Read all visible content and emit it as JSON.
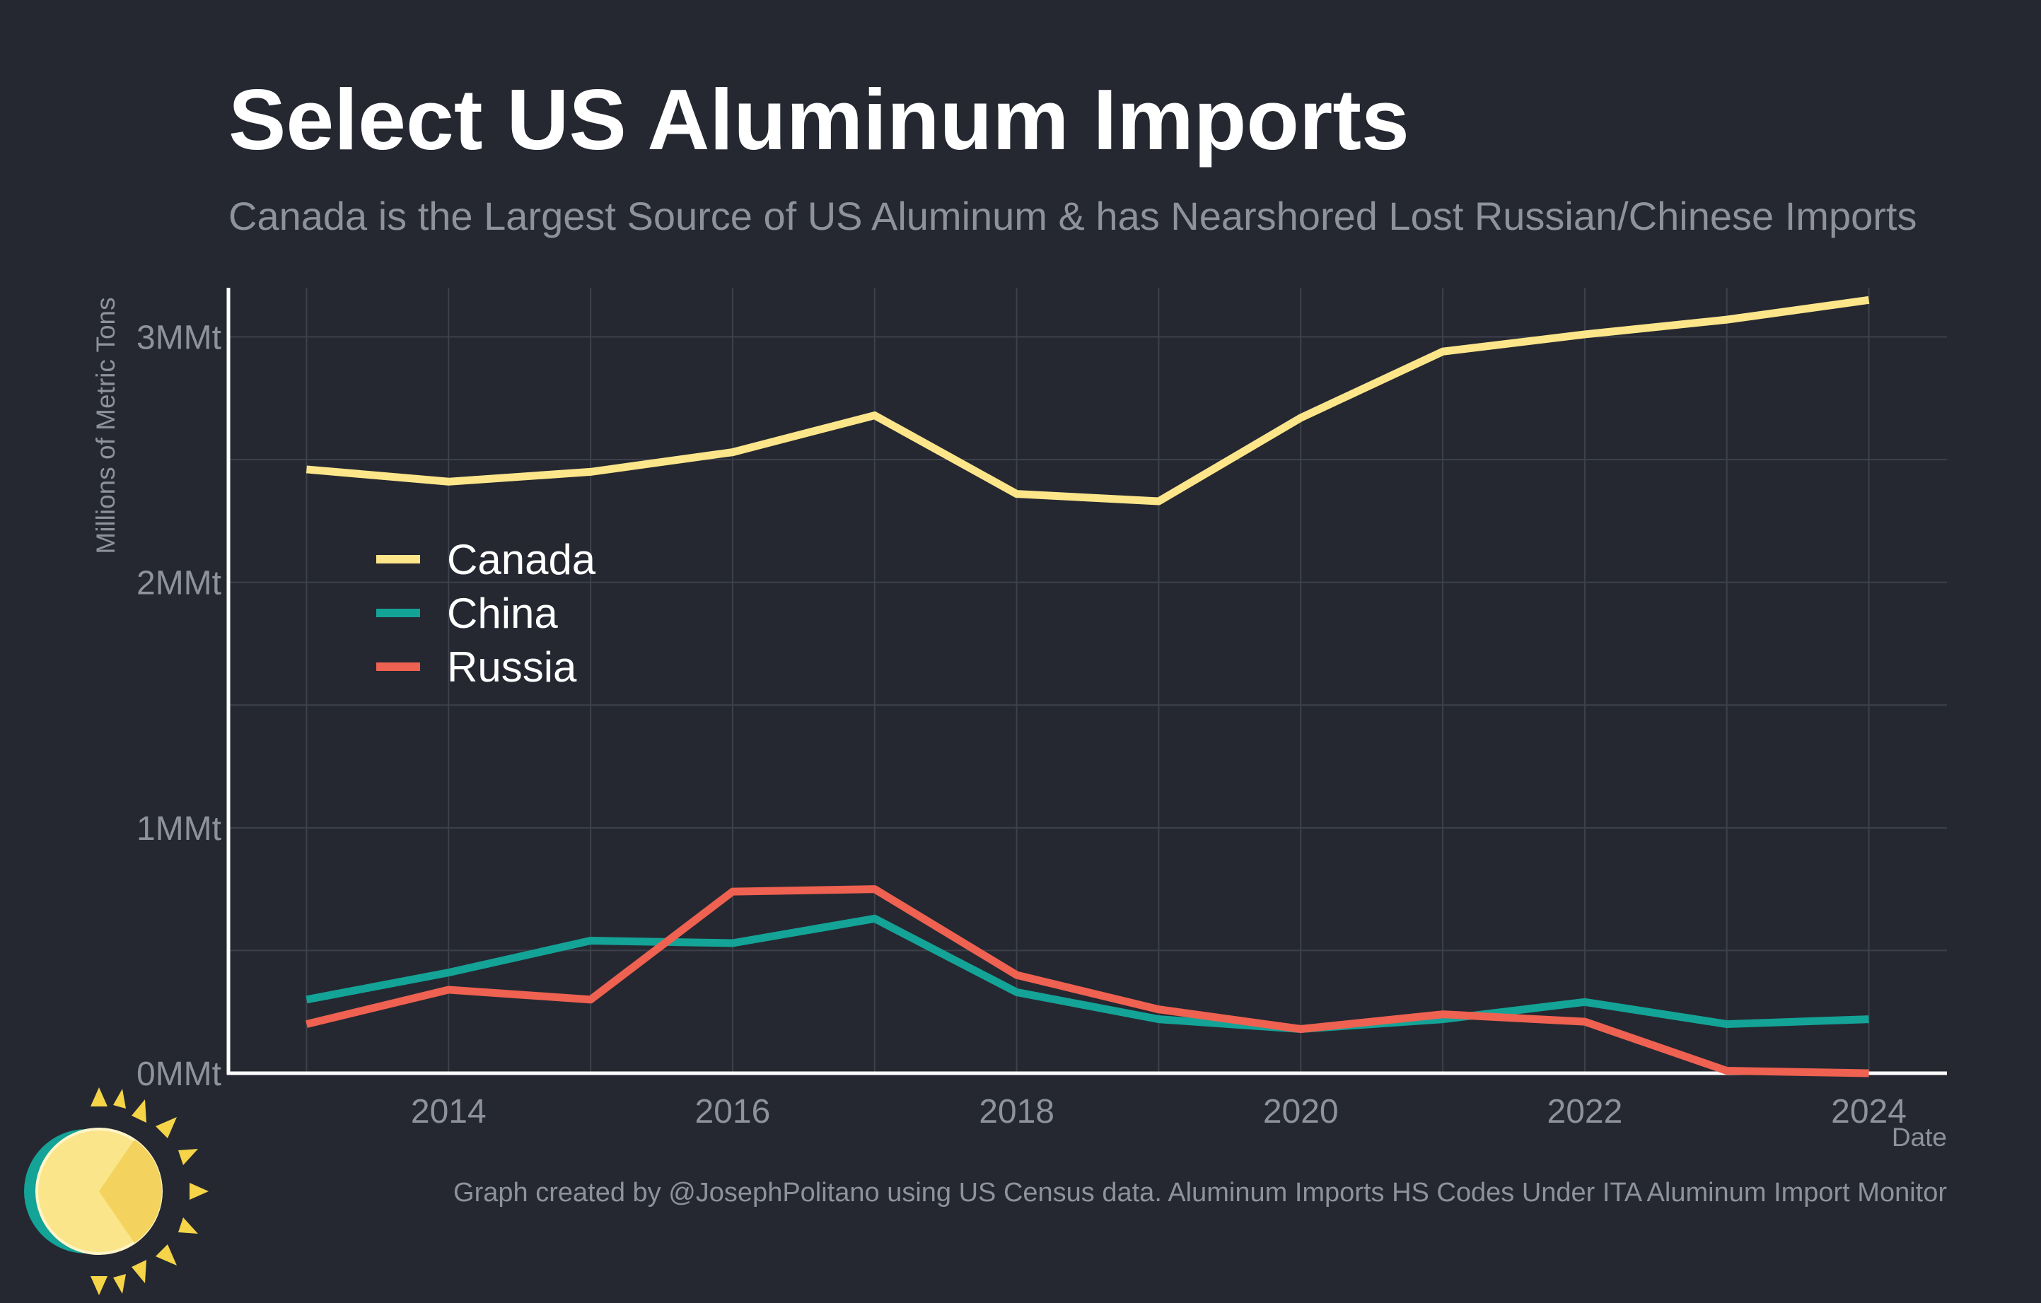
{
  "header": {
    "title": "Select US Aluminum Imports",
    "subtitle": "Canada is the Largest Source of US Aluminum & has Nearshored Lost Russian/Chinese Imports"
  },
  "caption": "Graph created by @JosephPolitano using US Census data. Aluminum Imports HS Codes Under ITA Aluminum Import Monitor",
  "logo": {
    "icon": "sun-logo-icon"
  },
  "colors": {
    "background": "#252831",
    "grid": "#3d414b",
    "axis": "#ffffff",
    "muted_text": "#8e929c"
  },
  "chart_data": {
    "type": "line",
    "title": "Select US Aluminum Imports",
    "subtitle": "Canada is the Largest Source of US Aluminum & has Nearshored Lost Russian/Chinese Imports",
    "xlabel": "Date",
    "ylabel": "Millions of Metric Tons",
    "x": [
      2013,
      2014,
      2015,
      2016,
      2017,
      2018,
      2019,
      2020,
      2021,
      2022,
      2023,
      2024
    ],
    "xlim": [
      2012.45,
      2024.55
    ],
    "ylim": [
      0,
      3.2
    ],
    "x_ticks": [
      2014,
      2016,
      2018,
      2020,
      2022,
      2024
    ],
    "x_tick_labels": [
      "2014",
      "2016",
      "2018",
      "2020",
      "2022",
      "2024"
    ],
    "y_ticks": [
      0,
      1,
      2,
      3
    ],
    "y_tick_labels": [
      "0MMt",
      "1MMt",
      "2MMt",
      "3MMt"
    ],
    "grid": true,
    "legend_position": "left",
    "series": [
      {
        "name": "Canada",
        "color": "#fde68a",
        "values": [
          2.46,
          2.41,
          2.45,
          2.53,
          2.68,
          2.36,
          2.33,
          2.67,
          2.94,
          3.01,
          3.07,
          3.15
        ]
      },
      {
        "name": "China",
        "color": "#14a397",
        "values": [
          0.3,
          0.41,
          0.54,
          0.53,
          0.63,
          0.33,
          0.22,
          0.18,
          0.22,
          0.29,
          0.2,
          0.22
        ]
      },
      {
        "name": "Russia",
        "color": "#ef6150",
        "values": [
          0.2,
          0.34,
          0.3,
          0.74,
          0.75,
          0.4,
          0.26,
          0.18,
          0.24,
          0.21,
          0.01,
          0.0
        ]
      }
    ]
  }
}
